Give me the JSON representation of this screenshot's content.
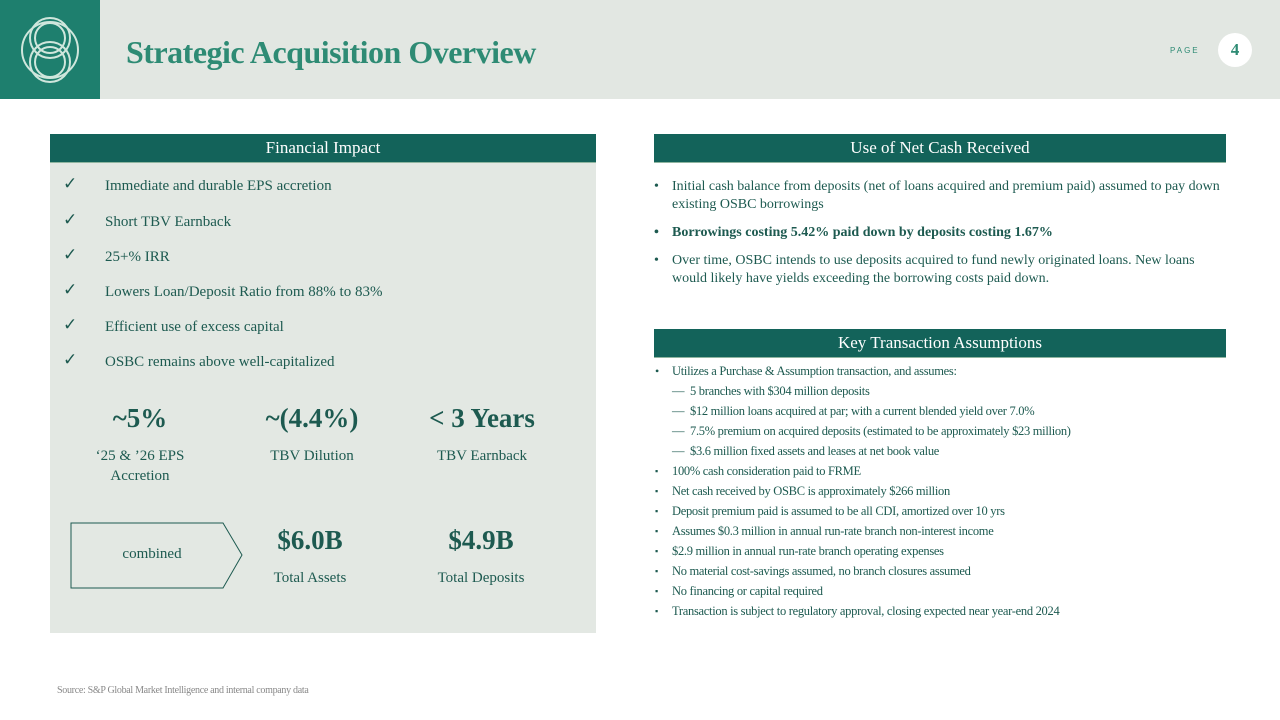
{
  "header": {
    "title": "Strategic Acquisition Overview",
    "page_label": "PAGE",
    "page_number": "4"
  },
  "financial_impact": {
    "title": "Financial Impact",
    "checks": [
      "Immediate and durable EPS accretion",
      "Short TBV Earnback",
      "25+% IRR",
      "Lowers Loan/Deposit  Ratio from 88% to 83%",
      "Efficient  use of excess capital",
      "OSBC remains above well-capitalized"
    ],
    "metrics": [
      {
        "value": "~5%",
        "label": "‘25 & ’26 EPS Accretion"
      },
      {
        "value": "~(4.4%)",
        "label": "TBV Dilution"
      },
      {
        "value": "< 3 Years",
        "label": "TBV Earnback"
      }
    ],
    "combined": {
      "label": "combined",
      "metrics": [
        {
          "value": "$6.0B",
          "label": "Total Assets"
        },
        {
          "value": "$4.9B",
          "label": "Total Deposits"
        }
      ]
    }
  },
  "use_of_cash": {
    "title": "Use of Net Cash Received",
    "bullets": [
      "Initial cash balance from deposits (net of loans acquired and premium paid) assumed to pay down existing OSBC borrowings",
      "Borrowings costing 5.42% paid down by deposits costing 1.67%",
      "Over time, OSBC intends to use deposits acquired to fund newly originated loans. New loans would likely have yields exceeding the borrowing costs paid down."
    ]
  },
  "assumptions": {
    "title": "Key Transaction Assumptions",
    "intro": "Utilizes a Purchase & Assumption transaction, and assumes:",
    "sub": [
      "5 branches with $304 million deposits",
      "$12 million loans acquired at par; with a current blended yield over 7.0%",
      "7.5% premium on acquired deposits (estimated to be approximately $23 million)",
      "$3.6 million fixed assets and leases at net book value"
    ],
    "items": [
      "100% cash consideration paid to FRME",
      "Net cash received by OSBC is approximately $266 million",
      "Deposit premium paid is assumed to be all CDI, amortized over 10 yrs",
      "Assumes $0.3 million in annual run-rate branch non-interest income",
      "$2.9 million in annual run-rate branch operating expenses",
      "No material cost-savings assumed, no branch closures assumed",
      "No financing or capital required",
      "Transaction is subject to regulatory approval, closing expected near year-end 2024"
    ]
  },
  "source": "Source: S&P Global Market Intelligence and internal company data"
}
